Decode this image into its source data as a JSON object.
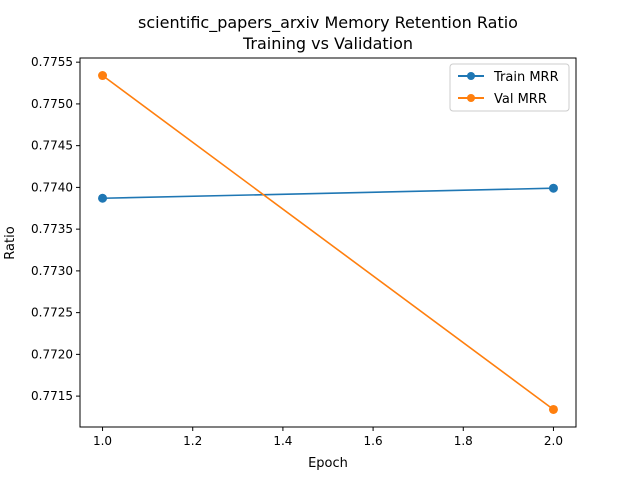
{
  "chart_data": {
    "type": "line",
    "title_line1": "scientific_papers_arxiv Memory Retention Ratio",
    "title_line2": "Training vs Validation",
    "xlabel": "Epoch",
    "ylabel": "Ratio",
    "x": [
      1.0,
      2.0
    ],
    "xlim": [
      0.95,
      2.05
    ],
    "ylim": [
      0.77113,
      0.77555
    ],
    "xticks": [
      1.0,
      1.2,
      1.4,
      1.6,
      1.8,
      2.0
    ],
    "xtick_labels": [
      "1.0",
      "1.2",
      "1.4",
      "1.6",
      "1.8",
      "2.0"
    ],
    "yticks": [
      0.7715,
      0.772,
      0.7725,
      0.773,
      0.7735,
      0.774,
      0.7745,
      0.775,
      0.7755
    ],
    "ytick_labels": [
      "0.7715",
      "0.7720",
      "0.7725",
      "0.7730",
      "0.7735",
      "0.7740",
      "0.7745",
      "0.7750",
      "0.7755"
    ],
    "grid": false,
    "legend_position": "top-right",
    "series": [
      {
        "name": "Train MRR",
        "color": "#1f77b4",
        "values": [
          0.77387,
          0.77399
        ]
      },
      {
        "name": "Val MRR",
        "color": "#ff7f0e",
        "values": [
          0.77534,
          0.77134
        ]
      }
    ]
  }
}
